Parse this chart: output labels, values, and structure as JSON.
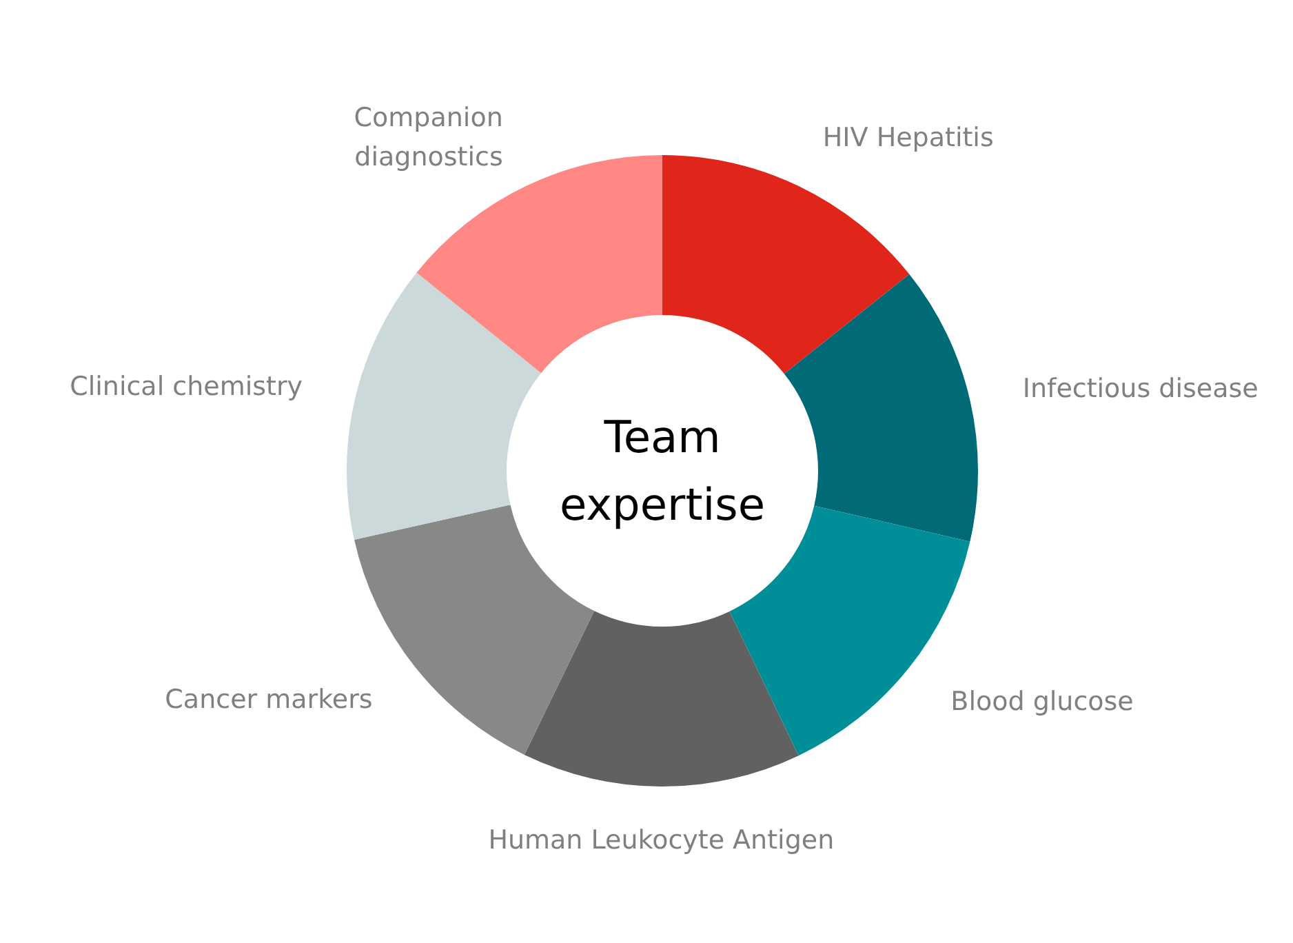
{
  "chart_data": {
    "type": "donut",
    "title": "Team\nexpertise",
    "categories": [
      "HIV Hepatitis",
      "Infectious disease",
      "Blood glucose",
      "Human Leukocyte Antigen",
      "Cancer markers",
      "Clinical chemistry",
      "Companion\ndiagnostics"
    ],
    "values": [
      14.3,
      14.3,
      14.3,
      14.3,
      14.3,
      14.3,
      14.2
    ],
    "colors": [
      "#e0261a",
      "#006b77",
      "#008f99",
      "#616161",
      "#888888",
      "#cbd9db",
      "#ff8784"
    ]
  }
}
